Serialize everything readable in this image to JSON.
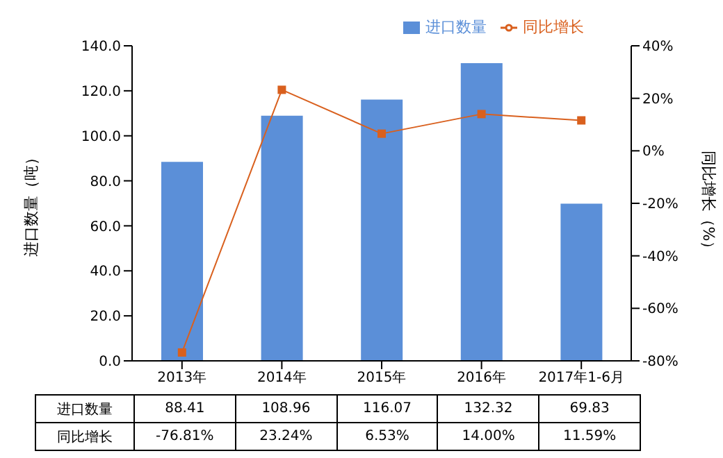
{
  "chart_data": {
    "type": "bar",
    "categories": [
      "2013年",
      "2014年",
      "2015年",
      "2016年",
      "2017年1-6月"
    ],
    "ylabel": "进口数量（吨）",
    "y2label": "同比增长（%）",
    "series": [
      {
        "name": "进口数量",
        "color": "#5b8fd8",
        "values": [
          88.41,
          108.96,
          116.07,
          132.32,
          69.83
        ],
        "value_labels": [
          "88.41",
          "108.96",
          "116.07",
          "132.32",
          "69.83"
        ]
      },
      {
        "name": "同比增长",
        "type": "line",
        "axis": "y2",
        "color": "#d9601e",
        "marker": "square",
        "values": [
          -76.81,
          23.24,
          6.53,
          14.0,
          11.59
        ],
        "value_labels": [
          "-76.81%",
          "23.24%",
          "6.53%",
          "14.00%",
          "11.59%"
        ]
      }
    ],
    "ylim": [
      0,
      140
    ],
    "yticks": [
      {
        "value": 0,
        "label": "0.0"
      },
      {
        "value": 20,
        "label": "20.0"
      },
      {
        "value": 40,
        "label": "40.0"
      },
      {
        "value": 60,
        "label": "60.0"
      },
      {
        "value": 80,
        "label": "80.0"
      },
      {
        "value": 100,
        "label": "100.0"
      },
      {
        "value": 120,
        "label": "120.0"
      },
      {
        "value": 140,
        "label": "140.0"
      }
    ],
    "y2lim": [
      -80,
      40
    ],
    "y2ticks": [
      {
        "value": -80,
        "label": "-80%"
      },
      {
        "value": -60,
        "label": "-60%"
      },
      {
        "value": -40,
        "label": "-40%"
      },
      {
        "value": -20,
        "label": "-20%"
      },
      {
        "value": 0,
        "label": "0%"
      },
      {
        "value": 20,
        "label": "20%"
      },
      {
        "value": 40,
        "label": "40%"
      }
    ],
    "legend": "top right",
    "grid": false
  }
}
